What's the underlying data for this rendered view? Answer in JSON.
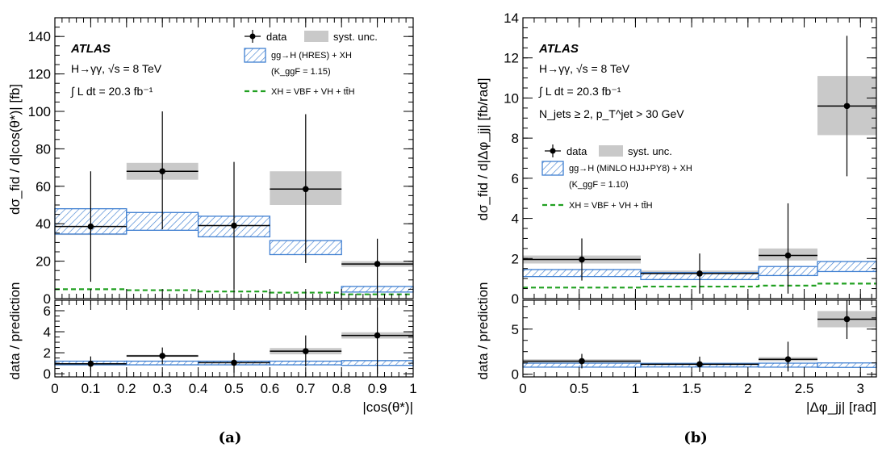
{
  "colors": {
    "syst_fill": "#c9c9c9",
    "prediction_hatch": "#3f7fd1",
    "xh_line": "#21a021",
    "data": "#000000"
  },
  "chart_data": [
    {
      "type": "bar",
      "caption": "(a)",
      "atlas_label": "ATLAS",
      "process_label": "H→γγ, √s = 8 TeV",
      "lumi_label": "∫ L dt = 20.3 fb⁻¹",
      "extra_label": "",
      "xlabel": "|cos(θ*)|",
      "ylabel_top": "dσ_fid / d|cos(θ*)| [fb]",
      "ylabel_bottom": "data / prediction",
      "xlim": [
        0,
        1
      ],
      "ylim_top": [
        0,
        150
      ],
      "ylim_bottom": [
        -0.3,
        7
      ],
      "xticks": [
        "0",
        "0.1",
        "0.2",
        "0.3",
        "0.4",
        "0.5",
        "0.6",
        "0.7",
        "0.8",
        "0.9",
        "1"
      ],
      "xtick_values": [
        0,
        0.1,
        0.2,
        0.3,
        0.4,
        0.5,
        0.6,
        0.7,
        0.8,
        0.9,
        1
      ],
      "yticks_top": [
        0,
        20,
        40,
        60,
        80,
        100,
        120,
        140
      ],
      "yticks_bottom": [
        0,
        2,
        4,
        6
      ],
      "bins": [
        [
          0,
          0.2
        ],
        [
          0.2,
          0.4
        ],
        [
          0.4,
          0.6
        ],
        [
          0.6,
          0.8
        ],
        [
          0.8,
          1.0
        ]
      ],
      "data": {
        "values": [
          38.5,
          68,
          39,
          58.5,
          18.5
        ],
        "err_low": [
          29.5,
          31,
          34,
          39.5,
          17.5
        ],
        "err_high": [
          29.5,
          32,
          34,
          40,
          13.5
        ],
        "syst_low": [
          4.5,
          4.5,
          4.5,
          8.5,
          1.5
        ],
        "syst_high": [
          4.5,
          4.5,
          4.5,
          9.5,
          1.5
        ]
      },
      "prediction": {
        "low": [
          34.5,
          36.5,
          33,
          23.5,
          3.5
        ],
        "high": [
          48,
          46,
          44,
          31,
          6.5
        ]
      },
      "xh": [
        5,
        4.5,
        3.8,
        3.2,
        2.3
      ],
      "ratio": {
        "values": [
          0.95,
          1.7,
          1.05,
          2.15,
          3.65
        ],
        "err_low": [
          0.75,
          0.8,
          0.95,
          1.45,
          3.65
        ],
        "err_high": [
          0.7,
          0.8,
          0.95,
          1.5,
          2.65
        ],
        "syst_low": [
          0.15,
          0.1,
          0.1,
          0.3,
          0.3
        ],
        "syst_high": [
          0.15,
          0.1,
          0.1,
          0.3,
          0.3
        ],
        "pred_low": [
          0.85,
          0.85,
          0.85,
          0.85,
          0.8
        ],
        "pred_high": [
          1.2,
          1.2,
          1.2,
          1.2,
          1.25
        ]
      },
      "legend": {
        "data": "data",
        "syst": "syst. unc.",
        "prediction": "gg→H (HRES) + XH",
        "kfactor": "(K_ggF = 1.15)",
        "xh": "XH = VBF + VH + tt̄H"
      }
    },
    {
      "type": "bar",
      "caption": "(b)",
      "atlas_label": "ATLAS",
      "process_label": "H→γγ, √s = 8 TeV",
      "lumi_label": "∫ L dt = 20.3 fb⁻¹",
      "extra_label": "N_jets ≥ 2, p_T^jet > 30 GeV",
      "xlabel": "|Δφ_jj| [rad]",
      "ylabel_top": "dσ_fid / d|Δφ_jj| [fb/rad]",
      "ylabel_bottom": "data / prediction",
      "xlim": [
        0,
        3.1416
      ],
      "ylim_top": [
        0,
        14
      ],
      "ylim_bottom": [
        -0.3,
        8.2
      ],
      "xticks": [
        "0",
        "0.5",
        "1",
        "1.5",
        "2",
        "2.5",
        "3"
      ],
      "xtick_values": [
        0,
        0.5,
        1,
        1.5,
        2,
        2.5,
        3
      ],
      "yticks_top": [
        0,
        2,
        4,
        6,
        8,
        10,
        12,
        14
      ],
      "yticks_bottom": [
        0,
        5
      ],
      "bins": [
        [
          0,
          1.0472
        ],
        [
          1.0472,
          2.0944
        ],
        [
          2.0944,
          2.618
        ],
        [
          2.618,
          3.1416
        ]
      ],
      "data": {
        "values": [
          1.95,
          1.25,
          2.15,
          9.6
        ],
        "err_low": [
          1.05,
          1.0,
          1.9,
          3.5
        ],
        "err_high": [
          1.05,
          1.0,
          2.6,
          3.5
        ],
        "syst_low": [
          0.2,
          0.15,
          0.25,
          1.45
        ],
        "syst_high": [
          0.2,
          0.15,
          0.35,
          1.5
        ]
      },
      "prediction": {
        "low": [
          1.1,
          0.95,
          1.15,
          1.35
        ],
        "high": [
          1.45,
          1.3,
          1.6,
          1.85
        ]
      },
      "xh": [
        0.55,
        0.6,
        0.65,
        0.75
      ],
      "ratio": {
        "values": [
          1.45,
          1.1,
          1.65,
          6.1
        ],
        "err_low": [
          0.8,
          0.85,
          1.35,
          2.2
        ],
        "err_high": [
          0.8,
          0.85,
          1.95,
          2.2
        ],
        "syst_low": [
          0.2,
          0.1,
          0.2,
          0.9
        ],
        "syst_high": [
          0.2,
          0.1,
          0.25,
          0.9
        ],
        "pred_low": [
          0.78,
          0.8,
          0.78,
          0.75
        ],
        "pred_high": [
          1.22,
          1.2,
          1.22,
          1.25
        ]
      },
      "legend": {
        "data": "data",
        "syst": "syst. unc.",
        "prediction": "gg→H (MiNLO HJJ+PY8) + XH",
        "kfactor": "(K_ggF = 1.10)",
        "xh": "XH = VBF + VH + tt̄H"
      }
    }
  ]
}
